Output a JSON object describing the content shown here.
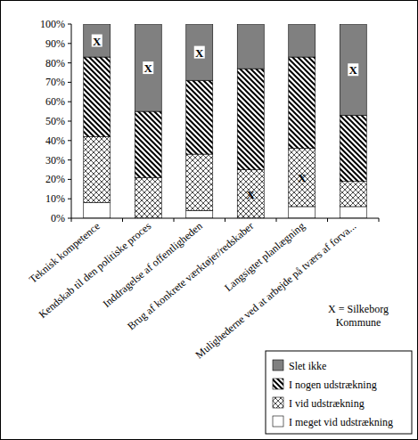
{
  "chart_data": {
    "type": "bar",
    "stacked": true,
    "legend": "bottom right",
    "grid": false,
    "categories": [
      "Teknisk kompetence",
      "Kendskab til den politiske proces",
      "Inddragelse af offentligheden",
      "Brug af konkrete værktøjer/redskaber",
      "Langsigtet planlægning",
      "Mulighederne ved at arbejde på tværs af forva..."
    ],
    "series": [
      {
        "name": "I meget vid udstrækning",
        "color": "#ffffff",
        "values": [
          8,
          0,
          4,
          0,
          6,
          6
        ]
      },
      {
        "name": "I vid udstrækning",
        "color": "#000000",
        "values": [
          34,
          21,
          29,
          25,
          30,
          13
        ]
      },
      {
        "name": "I nogen udstrækning",
        "color": "#000000",
        "values": [
          41,
          34,
          38,
          52,
          47,
          34
        ]
      },
      {
        "name": "Slet ikke",
        "color": "#808080",
        "values": [
          17,
          45,
          29,
          23,
          17,
          47
        ]
      }
    ],
    "ylim": [
      0,
      100
    ],
    "yticks": [
      {
        "value": 0,
        "label": "0%"
      },
      {
        "value": 10,
        "label": "10%"
      },
      {
        "value": 20,
        "label": "20%"
      },
      {
        "value": 30,
        "label": "30%"
      },
      {
        "value": 40,
        "label": "40%"
      },
      {
        "value": 50,
        "label": "50%"
      },
      {
        "value": 60,
        "label": "60%"
      },
      {
        "value": 70,
        "label": "70%"
      },
      {
        "value": 80,
        "label": "80%"
      },
      {
        "value": 90,
        "label": "90%"
      },
      {
        "value": 100,
        "label": "100%"
      }
    ],
    "segment_marks": [
      {
        "text": "X",
        "category": 0,
        "series": 3
      },
      {
        "text": "X",
        "category": 1,
        "series": 3
      },
      {
        "text": "X",
        "category": 2,
        "series": 3
      },
      {
        "text": "X",
        "category": 3,
        "series": 1
      },
      {
        "text": "X",
        "category": 4,
        "series": 1
      },
      {
        "text": "X",
        "category": 5,
        "series": 3
      }
    ],
    "annotations": [
      {
        "text": "X = Silkeborg Kommune"
      }
    ]
  }
}
